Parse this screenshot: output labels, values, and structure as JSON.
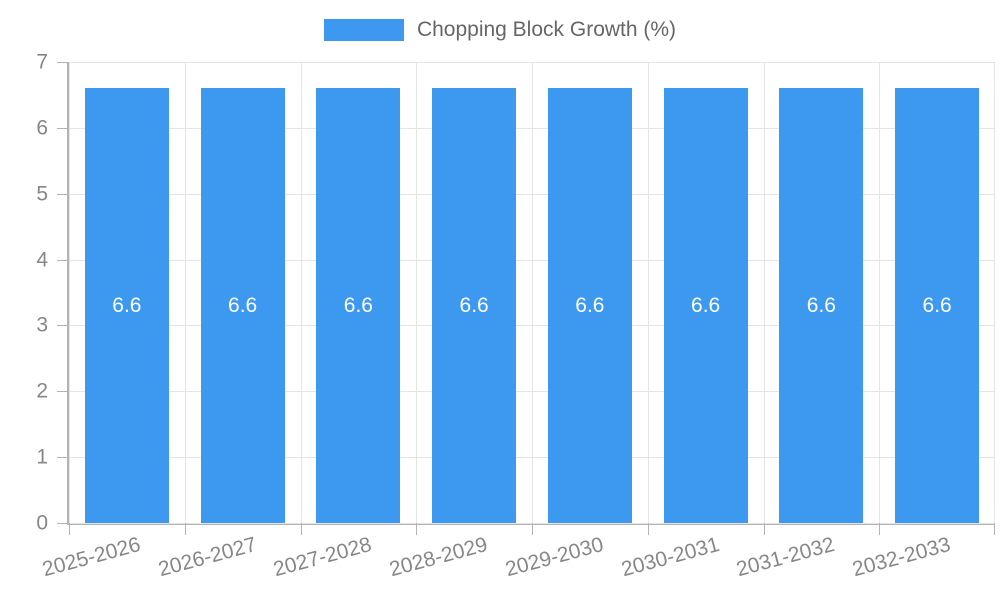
{
  "chart": {
    "colors": {
      "bar": "#3D99F0",
      "grid": "#e5e5e5",
      "axis": "#b3b3b3",
      "tick_text": "#878787",
      "legend_text": "#666666",
      "value_text": "#ffffff"
    }
  },
  "chart_data": {
    "type": "bar",
    "title": "",
    "xlabel": "",
    "ylabel": "",
    "categories": [
      "2025-2026",
      "2026-2027",
      "2027-2028",
      "2028-2029",
      "2029-2030",
      "2030-2031",
      "2031-2032",
      "2032-2033"
    ],
    "series": [
      {
        "name": "Chopping Block Growth (%)",
        "values": [
          6.6,
          6.6,
          6.6,
          6.6,
          6.6,
          6.6,
          6.6,
          6.6
        ],
        "value_labels": [
          "6.6",
          "6.6",
          "6.6",
          "6.6",
          "6.6",
          "6.6",
          "6.6",
          "6.6"
        ]
      }
    ],
    "ylim": [
      0,
      7
    ],
    "yticks": [
      0,
      1,
      2,
      3,
      4,
      5,
      6,
      7
    ],
    "grid": true,
    "legend_position": "top",
    "x_tick_rotation": -15
  }
}
